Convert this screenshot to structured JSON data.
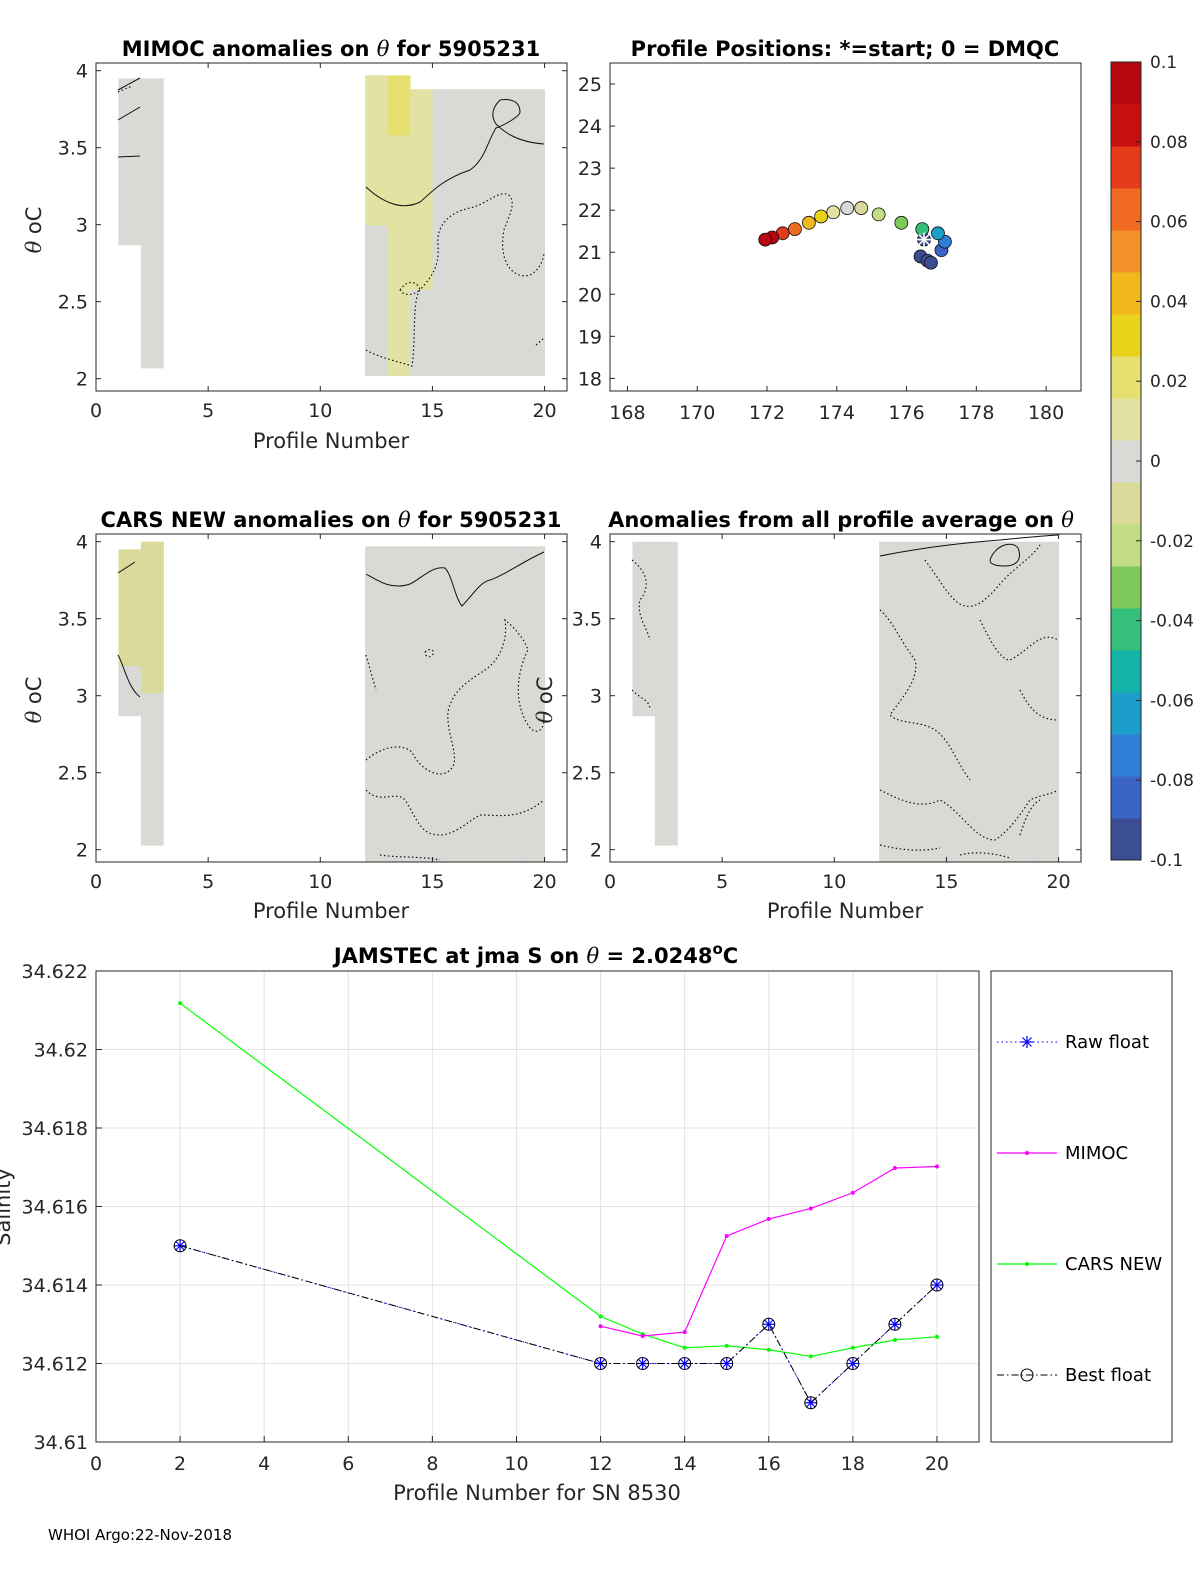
{
  "footer": "WHOI Argo:22-Nov-2018",
  "colormap": [
    "#3b4d93",
    "#3a64c6",
    "#2f7fd6",
    "#1b9ec9",
    "#13b3a8",
    "#35bf7c",
    "#7ec95a",
    "#c2dc84",
    "#dadb9a",
    "#d9d9d6",
    "#e2e2a2",
    "#e6e070",
    "#e8d21a",
    "#f0b81d",
    "#f3902a",
    "#f06a22",
    "#e43c1a",
    "#c60f0f",
    "#b50710"
  ],
  "colorbar": {
    "ticks": [
      "0.1",
      "0.08",
      "0.06",
      "0.04",
      "0.02",
      "0",
      "-0.02",
      "-0.04",
      "-0.06",
      "-0.08",
      "-0.1"
    ],
    "range": [
      -0.1,
      0.1
    ]
  },
  "chart_data": [
    {
      "type": "heatmap",
      "title": "MIMOC anomalies on θ  for 5905231",
      "title_prefix": "MIMOC anomalies on ",
      "title_symbol": "θ",
      "title_suffix": "  for 5905231",
      "xlabel": "Profile Number",
      "ylabel_symbol": "θ",
      "ylabel_unit": "oC",
      "xlim": [
        0,
        21
      ],
      "ylim": [
        1.92,
        4.05
      ],
      "xticks": [
        "0",
        "5",
        "10",
        "15",
        "20"
      ],
      "yticks": [
        "2",
        "2.5",
        "3",
        "3.5",
        "4"
      ],
      "columns": [
        {
          "x": 1,
          "y": [
            2.87,
            3.95
          ],
          "value": -0.004
        },
        {
          "x": 2,
          "y": [
            2.07,
            3.95
          ],
          "value": -0.003
        },
        {
          "x": 12,
          "y": [
            2.02,
            3.97
          ],
          "value": 0.006
        },
        {
          "x": 13,
          "y": [
            2.02,
            3.97
          ],
          "value": 0.014
        },
        {
          "x": 14,
          "y": [
            2.02,
            3.88
          ],
          "value": 0.008
        },
        {
          "x": 15,
          "y": [
            2.02,
            3.88
          ],
          "value": 0.004
        },
        {
          "x": 16,
          "y": [
            2.02,
            3.88
          ],
          "value": 0.002
        },
        {
          "x": 17,
          "y": [
            2.02,
            3.88
          ],
          "value": 0.001
        },
        {
          "x": 18,
          "y": [
            2.02,
            3.88
          ],
          "value": -0.002
        },
        {
          "x": 19,
          "y": [
            2.02,
            3.88
          ],
          "value": -0.004
        }
      ]
    },
    {
      "type": "scatter",
      "title": "Profile Positions: *=start; 0 = DMQC",
      "xlim": [
        167.5,
        181
      ],
      "ylim": [
        17.7,
        25.5
      ],
      "xticks": [
        168,
        170,
        172,
        174,
        176,
        178,
        180
      ],
      "yticks": [
        18,
        19,
        20,
        21,
        22,
        23,
        24,
        25
      ],
      "points": [
        {
          "lon": 176.5,
          "lat": 21.3,
          "value": -0.1
        },
        {
          "lon": 176.4,
          "lat": 20.9,
          "value": -0.1
        },
        {
          "lon": 176.6,
          "lat": 20.8,
          "value": -0.095
        },
        {
          "lon": 176.7,
          "lat": 20.75,
          "value": -0.09
        },
        {
          "lon": 177.0,
          "lat": 21.05,
          "value": -0.085
        },
        {
          "lon": 177.1,
          "lat": 21.25,
          "value": -0.075
        },
        {
          "lon": 176.9,
          "lat": 21.45,
          "value": -0.06
        },
        {
          "lon": 176.45,
          "lat": 21.55,
          "value": -0.045
        },
        {
          "lon": 175.85,
          "lat": 21.7,
          "value": -0.035
        },
        {
          "lon": 175.2,
          "lat": 21.9,
          "value": -0.025
        },
        {
          "lon": 174.7,
          "lat": 22.05,
          "value": -0.015
        },
        {
          "lon": 174.3,
          "lat": 22.05,
          "value": -0.005
        },
        {
          "lon": 173.9,
          "lat": 21.95,
          "value": 0.015
        },
        {
          "lon": 173.55,
          "lat": 21.85,
          "value": 0.03
        },
        {
          "lon": 173.2,
          "lat": 21.7,
          "value": 0.045
        },
        {
          "lon": 172.8,
          "lat": 21.55,
          "value": 0.06
        },
        {
          "lon": 172.45,
          "lat": 21.45,
          "value": 0.075
        },
        {
          "lon": 172.15,
          "lat": 21.35,
          "value": 0.09
        },
        {
          "lon": 171.95,
          "lat": 21.3,
          "value": 0.1
        }
      ],
      "start": {
        "lon": 176.5,
        "lat": 21.3
      }
    },
    {
      "type": "heatmap",
      "title": "CARS NEW anomalies on θ for 5905231",
      "title_prefix": "CARS NEW anomalies on ",
      "title_symbol": "θ",
      "title_suffix": " for 5905231",
      "xlabel": "Profile Number",
      "ylabel_symbol": "θ",
      "ylabel_unit": "oC",
      "xlim": [
        0,
        21
      ],
      "ylim": [
        1.92,
        4.05
      ],
      "xticks": [
        "0",
        "5",
        "10",
        "15",
        "20"
      ],
      "yticks": [
        "2",
        "2.5",
        "3",
        "3.5",
        "4"
      ],
      "columns": [
        {
          "x": 1,
          "y": [
            2.87,
            3.95
          ],
          "value": -0.008
        },
        {
          "x": 2,
          "y": [
            2.03,
            4.0
          ],
          "value": -0.006
        },
        {
          "x": 12,
          "y": [
            1.92,
            3.97
          ],
          "value": 0.002
        },
        {
          "x": 13,
          "y": [
            1.92,
            3.97
          ],
          "value": 0.003
        },
        {
          "x": 14,
          "y": [
            1.92,
            3.97
          ],
          "value": 0.002
        },
        {
          "x": 15,
          "y": [
            1.92,
            3.97
          ],
          "value": 0.001
        },
        {
          "x": 16,
          "y": [
            1.92,
            3.97
          ],
          "value": 0.0
        },
        {
          "x": 17,
          "y": [
            1.92,
            3.97
          ],
          "value": 0.004
        },
        {
          "x": 18,
          "y": [
            1.92,
            3.97
          ],
          "value": 0.001
        },
        {
          "x": 19,
          "y": [
            1.92,
            3.97
          ],
          "value": 0.0
        }
      ]
    },
    {
      "type": "heatmap",
      "title": "Anomalies from all profile average on θ",
      "title_prefix": "Anomalies from all profile average on ",
      "title_symbol": "θ",
      "title_suffix": "",
      "xlabel": "Profile Number",
      "ylabel_symbol": "θ",
      "ylabel_unit": "oC",
      "xlim": [
        0,
        21
      ],
      "ylim": [
        1.92,
        4.05
      ],
      "xticks": [
        "0",
        "5",
        "10",
        "15",
        "20"
      ],
      "yticks": [
        "2",
        "2.5",
        "3",
        "3.5",
        "4"
      ],
      "columns": [
        {
          "x": 1,
          "y": [
            2.87,
            4.0
          ],
          "value": -0.001
        },
        {
          "x": 2,
          "y": [
            2.03,
            4.0
          ],
          "value": 0.0
        },
        {
          "x": 12,
          "y": [
            1.92,
            4.0
          ],
          "value": 0.001
        },
        {
          "x": 13,
          "y": [
            1.92,
            4.0
          ],
          "value": -0.001
        },
        {
          "x": 14,
          "y": [
            1.92,
            4.0
          ],
          "value": 0.0
        },
        {
          "x": 15,
          "y": [
            1.92,
            4.0
          ],
          "value": -0.002
        },
        {
          "x": 16,
          "y": [
            1.92,
            4.0
          ],
          "value": 0.001
        },
        {
          "x": 17,
          "y": [
            1.92,
            4.0
          ],
          "value": 0.002
        },
        {
          "x": 18,
          "y": [
            1.92,
            4.0
          ],
          "value": -0.001
        },
        {
          "x": 19,
          "y": [
            1.92,
            4.0
          ],
          "value": 0.0
        }
      ]
    },
    {
      "type": "line",
      "title": "JAMSTEC at jma S on θ = 2.0248oC",
      "title_prefix": "JAMSTEC at jma S on ",
      "title_symbol": "θ",
      "title_value": " = 2.0248",
      "title_sup": "o",
      "title_unit": "C",
      "xlabel": "Profile Number for SN 8530",
      "ylabel": "Salinity",
      "xlim": [
        0,
        21
      ],
      "ylim": [
        34.61,
        34.622
      ],
      "xticks": [
        "0",
        "2",
        "4",
        "6",
        "8",
        "10",
        "12",
        "14",
        "16",
        "18",
        "20"
      ],
      "yticks": [
        "34.61",
        "34.612",
        "34.614",
        "34.616",
        "34.618",
        "34.62",
        "34.622"
      ],
      "x": [
        2,
        12,
        13,
        14,
        15,
        16,
        17,
        18,
        19,
        20
      ],
      "series": [
        {
          "name": "Raw float",
          "color": "#0000ff",
          "values": [
            34.615,
            34.612,
            34.612,
            34.612,
            34.612,
            34.613,
            34.611,
            34.612,
            34.613,
            34.614
          ]
        },
        {
          "name": "MIMOC",
          "color": "#ff00ff",
          "values": [
            null,
            34.61295,
            34.6127,
            34.6128,
            34.61525,
            34.61568,
            34.61595,
            34.61635,
            34.61698,
            34.61702
          ]
        },
        {
          "name": "CARS NEW",
          "color": "#00ff00",
          "values": [
            34.62118,
            34.6132,
            34.61275,
            34.6124,
            34.61245,
            34.61235,
            34.61218,
            34.6124,
            34.6126,
            34.61268
          ]
        },
        {
          "name": "Best float",
          "color": "#000000",
          "values": [
            34.615,
            34.612,
            34.612,
            34.612,
            34.612,
            34.613,
            34.611,
            34.612,
            34.613,
            34.614
          ]
        }
      ]
    }
  ]
}
